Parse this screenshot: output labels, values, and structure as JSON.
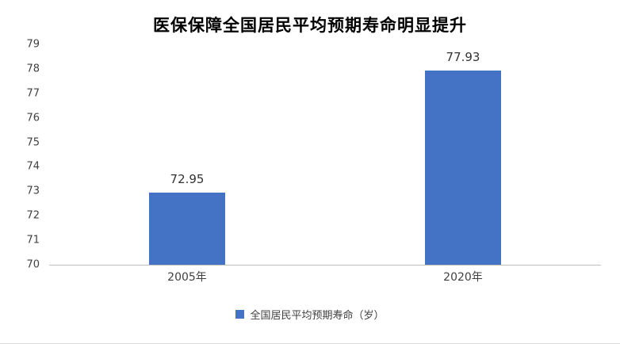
{
  "chart_data": {
    "type": "bar",
    "title": "医保保障全国居民平均预期寿命明显提升",
    "categories": [
      "2005年",
      "2020年"
    ],
    "values": [
      72.95,
      77.93
    ],
    "value_labels": [
      "72.95",
      "77.93"
    ],
    "legend": "全国居民平均预期寿命（岁）",
    "xlabel": "",
    "ylabel": "",
    "ylim": [
      70,
      79
    ],
    "yticks": [
      70,
      71,
      72,
      73,
      74,
      75,
      76,
      77,
      78,
      79
    ],
    "bar_color": "#4472C4",
    "grid": false,
    "legend_position": "bottom"
  }
}
